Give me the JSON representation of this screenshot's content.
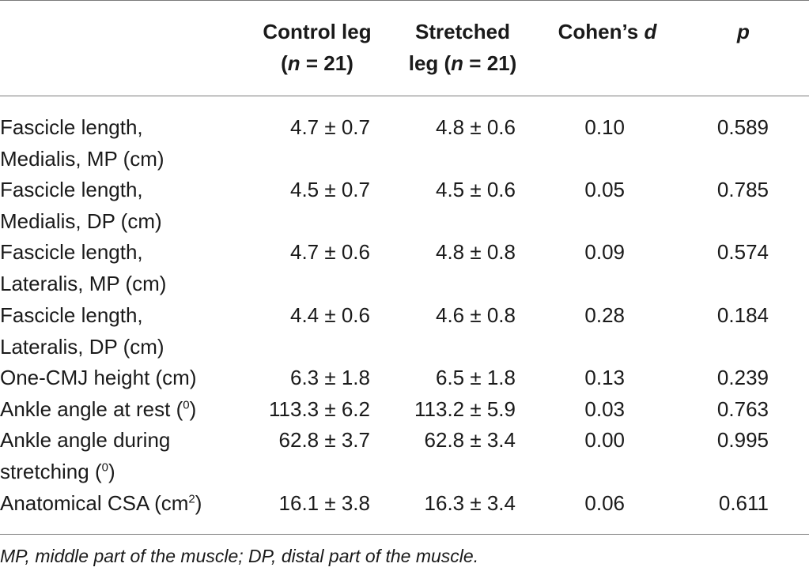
{
  "table": {
    "headers": {
      "control_line1": "Control leg",
      "control_line2_open": "(",
      "control_line2_n": "n",
      "control_line2_rest": " = 21)",
      "stretched_line1": "Stretched",
      "stretched_line2_pre": "leg (",
      "stretched_line2_n": "n",
      "stretched_line2_rest": " = 21)",
      "cohens_pre": "Cohen’s ",
      "cohens_d": "d",
      "p": "p"
    },
    "rows": [
      {
        "label_line1": "Fascicle length,",
        "label_line2": "Medialis, MP (cm)",
        "control": "4.7 ± 0.7",
        "stretched": "4.8 ± 0.6",
        "cohens_d": "0.10",
        "p": "0.589"
      },
      {
        "label_line1": "Fascicle length,",
        "label_line2": "Medialis, DP (cm)",
        "control": "4.5 ± 0.7",
        "stretched": "4.5 ± 0.6",
        "cohens_d": "0.05",
        "p": "0.785"
      },
      {
        "label_line1": "Fascicle length,",
        "label_line2": "Lateralis, MP (cm)",
        "control": "4.7 ± 0.6",
        "stretched": "4.8 ± 0.8",
        "cohens_d": "0.09",
        "p": "0.574"
      },
      {
        "label_line1": "Fascicle length,",
        "label_line2": "Lateralis, DP (cm)",
        "control": "4.4 ± 0.6",
        "stretched": "4.6 ± 0.8",
        "cohens_d": "0.28",
        "p": "0.184"
      },
      {
        "label_line1": "One-CMJ height (cm)",
        "control": "6.3 ± 1.8",
        "stretched": "6.5 ± 1.8",
        "cohens_d": "0.13",
        "p": "0.239"
      },
      {
        "label_pre": "Ankle angle at rest (",
        "label_sup": "0",
        "label_post": ")",
        "control": "113.3 ± 6.2",
        "stretched": "113.2 ± 5.9",
        "cohens_d": "0.03",
        "p": "0.763"
      },
      {
        "label_line1": "Ankle angle during",
        "label_line2_pre": "stretching (",
        "label_sup": "0",
        "label_post": ")",
        "control": "62.8 ± 3.7",
        "stretched": "62.8 ± 3.4",
        "cohens_d": "0.00",
        "p": "0.995"
      },
      {
        "label_pre": "Anatomical CSA (cm",
        "label_sup": "2",
        "label_post": ")",
        "control": "16.1 ± 3.8",
        "stretched": "16.3 ± 3.4",
        "cohens_d": "0.06",
        "p": "0.611"
      }
    ]
  },
  "footnote": "MP, middle part of the muscle; DP, distal part of the muscle."
}
